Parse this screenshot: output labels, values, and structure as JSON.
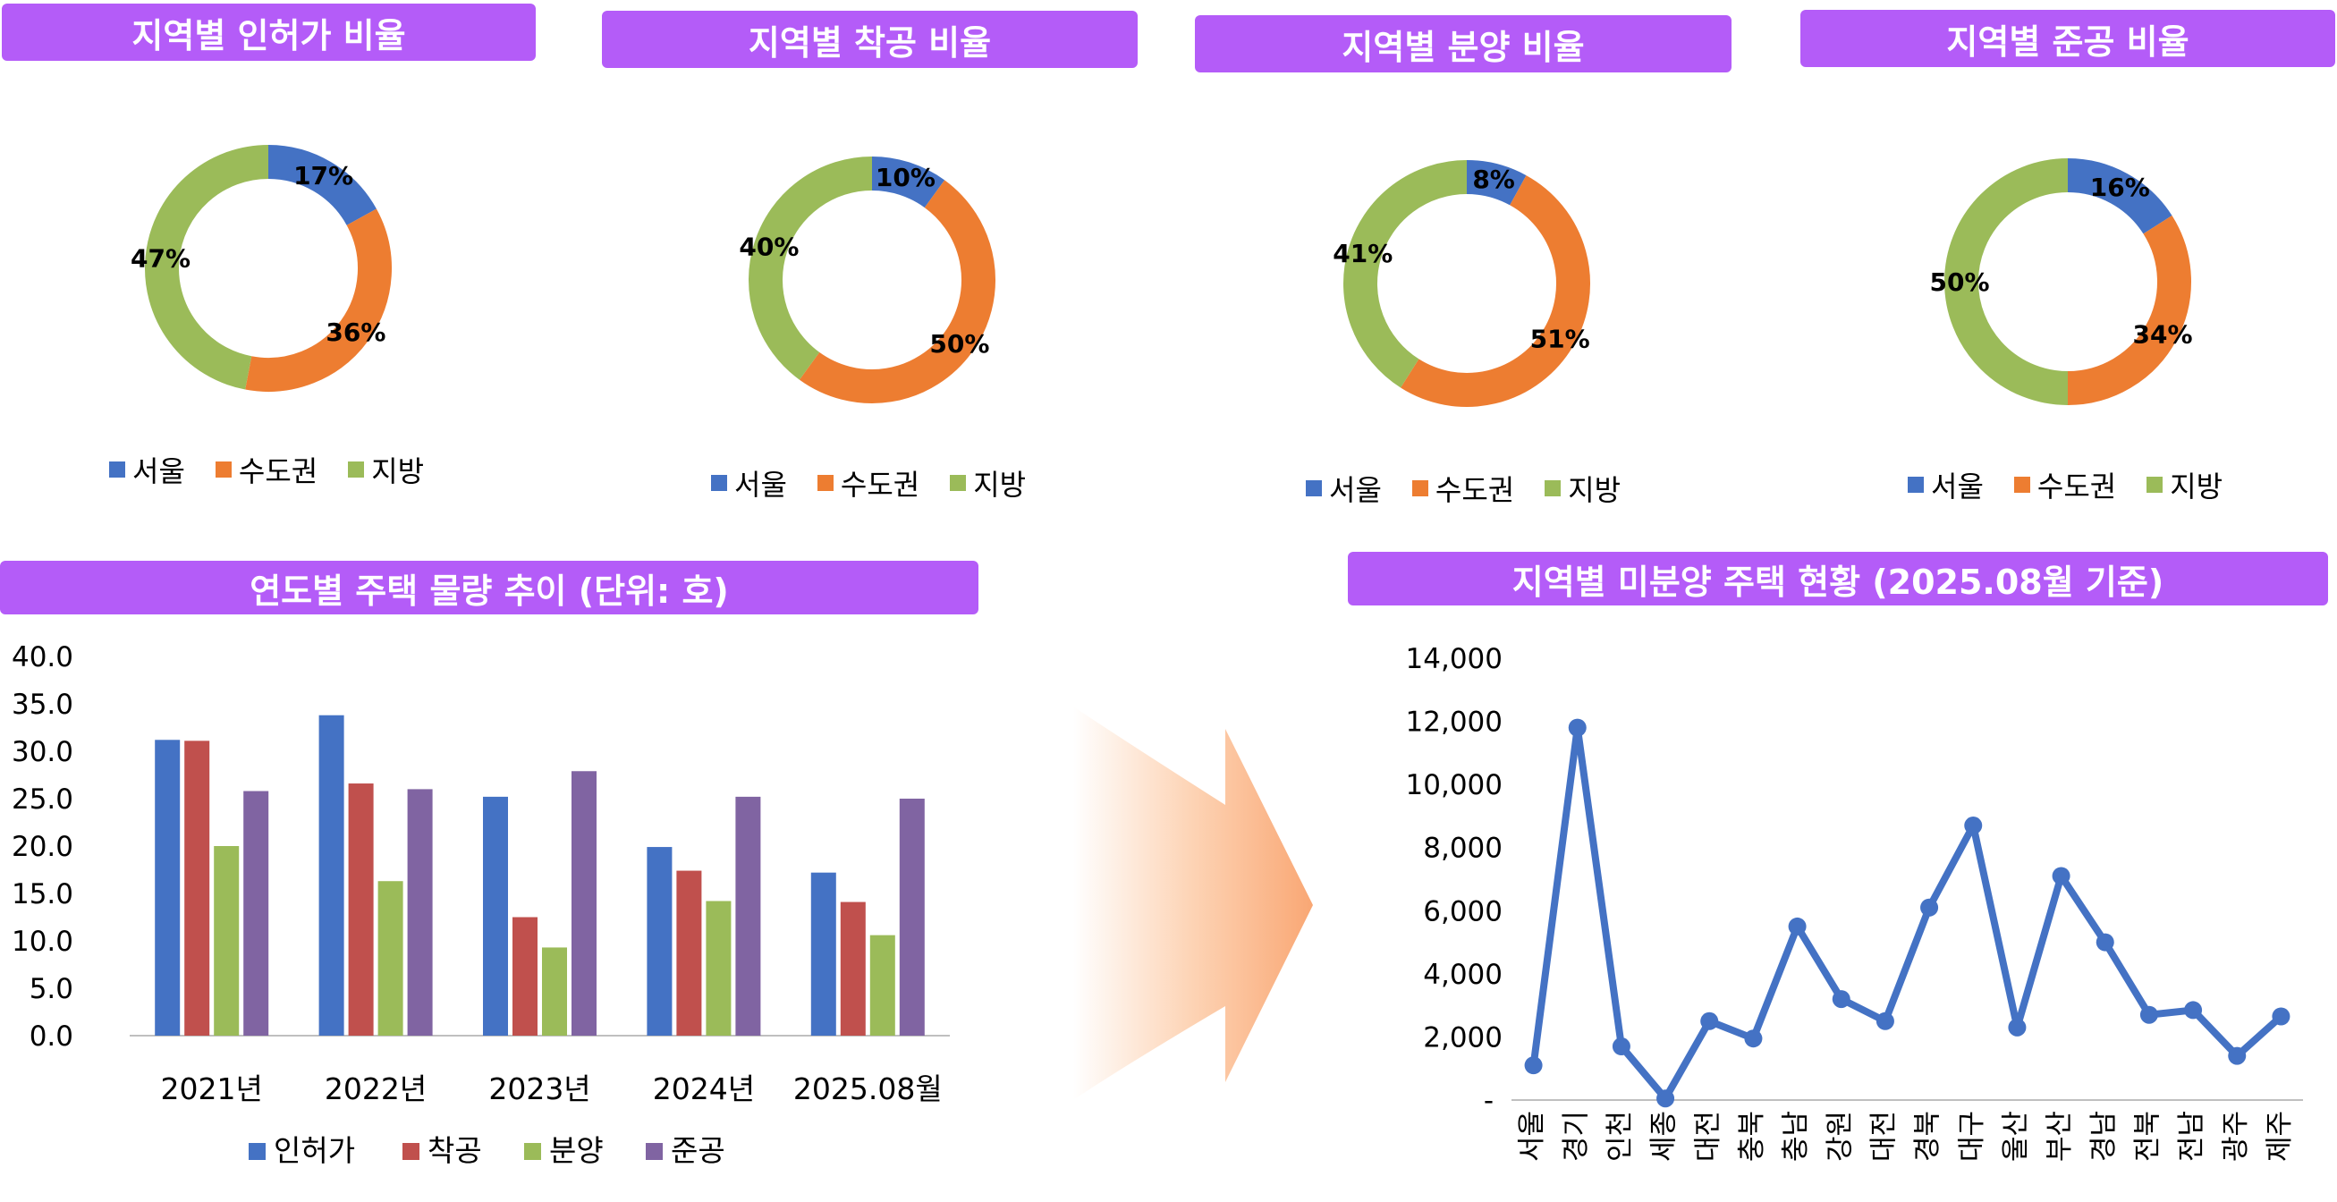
{
  "titles": {
    "donut_permit": "지역별 인허가 비율",
    "donut_start": "지역별 착공 비율",
    "donut_sale": "지역별 분양 비율",
    "donut_complete": "지역별 준공 비율",
    "bar": "연도별 주택 물량 추이 (단위: 호)",
    "line": "지역별 미분양 주택 현황 (2025.08월 기준)"
  },
  "colors": {
    "title_bg": "#b45cf8",
    "seoul": "#4472c4",
    "capital": "#ed7d31",
    "region": "#9bbb59",
    "permit": "#4472c4",
    "start": "#c0504d",
    "sale": "#9bbb59",
    "complete": "#8064a2",
    "line": "#4472c4"
  },
  "donut_legend": [
    "서울",
    "수도권",
    "지방"
  ],
  "chart_data": [
    {
      "type": "pie",
      "title": "지역별 인허가 비율",
      "categories": [
        "서울",
        "수도권",
        "지방"
      ],
      "values": [
        17,
        36,
        47
      ],
      "labels": [
        "17%",
        "36%",
        "47%"
      ]
    },
    {
      "type": "pie",
      "title": "지역별 착공 비율",
      "categories": [
        "서울",
        "수도권",
        "지방"
      ],
      "values": [
        10,
        50,
        40
      ],
      "labels": [
        "10%",
        "50%",
        "40%"
      ]
    },
    {
      "type": "pie",
      "title": "지역별 분양 비율",
      "categories": [
        "서울",
        "수도권",
        "지방"
      ],
      "values": [
        8,
        51,
        41
      ],
      "labels": [
        "8%",
        "51%",
        "41%"
      ]
    },
    {
      "type": "pie",
      "title": "지역별 준공 비율",
      "categories": [
        "서울",
        "수도권",
        "지방"
      ],
      "values": [
        16,
        34,
        50
      ],
      "labels": [
        "16%",
        "34%",
        "50%"
      ]
    },
    {
      "type": "bar",
      "title": "연도별 주택 물량 추이 (단위: 호)",
      "categories": [
        "2021년",
        "2022년",
        "2023년",
        "2024년",
        "2025.08월"
      ],
      "series": [
        {
          "name": "인허가",
          "values": [
            31.2,
            33.8,
            25.2,
            19.9,
            17.2
          ]
        },
        {
          "name": "착공",
          "values": [
            31.1,
            26.6,
            12.5,
            17.4,
            14.1
          ]
        },
        {
          "name": "분양",
          "values": [
            20.0,
            16.3,
            9.3,
            14.2,
            10.6
          ]
        },
        {
          "name": "준공",
          "values": [
            25.8,
            26.0,
            27.9,
            25.2,
            25.0
          ]
        }
      ],
      "ylim": [
        0,
        40
      ],
      "yticks": [
        "0.0",
        "5.0",
        "10.0",
        "15.0",
        "20.0",
        "25.0",
        "30.0",
        "35.0",
        "40.0"
      ],
      "legend": "bottom"
    },
    {
      "type": "line",
      "title": "지역별 미분양 주택 현황 (2025.08월 기준)",
      "categories": [
        "서울",
        "경기",
        "인천",
        "세종",
        "대전",
        "충북",
        "충남",
        "강원",
        "대전",
        "경북",
        "대구",
        "울산",
        "부산",
        "경남",
        "전북",
        "전남",
        "광주",
        "제주"
      ],
      "values": [
        1100,
        11800,
        1700,
        50,
        2500,
        1950,
        5500,
        3200,
        2500,
        6100,
        8700,
        2300,
        7100,
        5000,
        2700,
        2850,
        1400,
        2650
      ],
      "ylim": [
        0,
        14000
      ],
      "yticks": [
        "-",
        "2,000",
        "4,000",
        "6,000",
        "8,000",
        "10,000",
        "12,000",
        "14,000"
      ]
    }
  ]
}
